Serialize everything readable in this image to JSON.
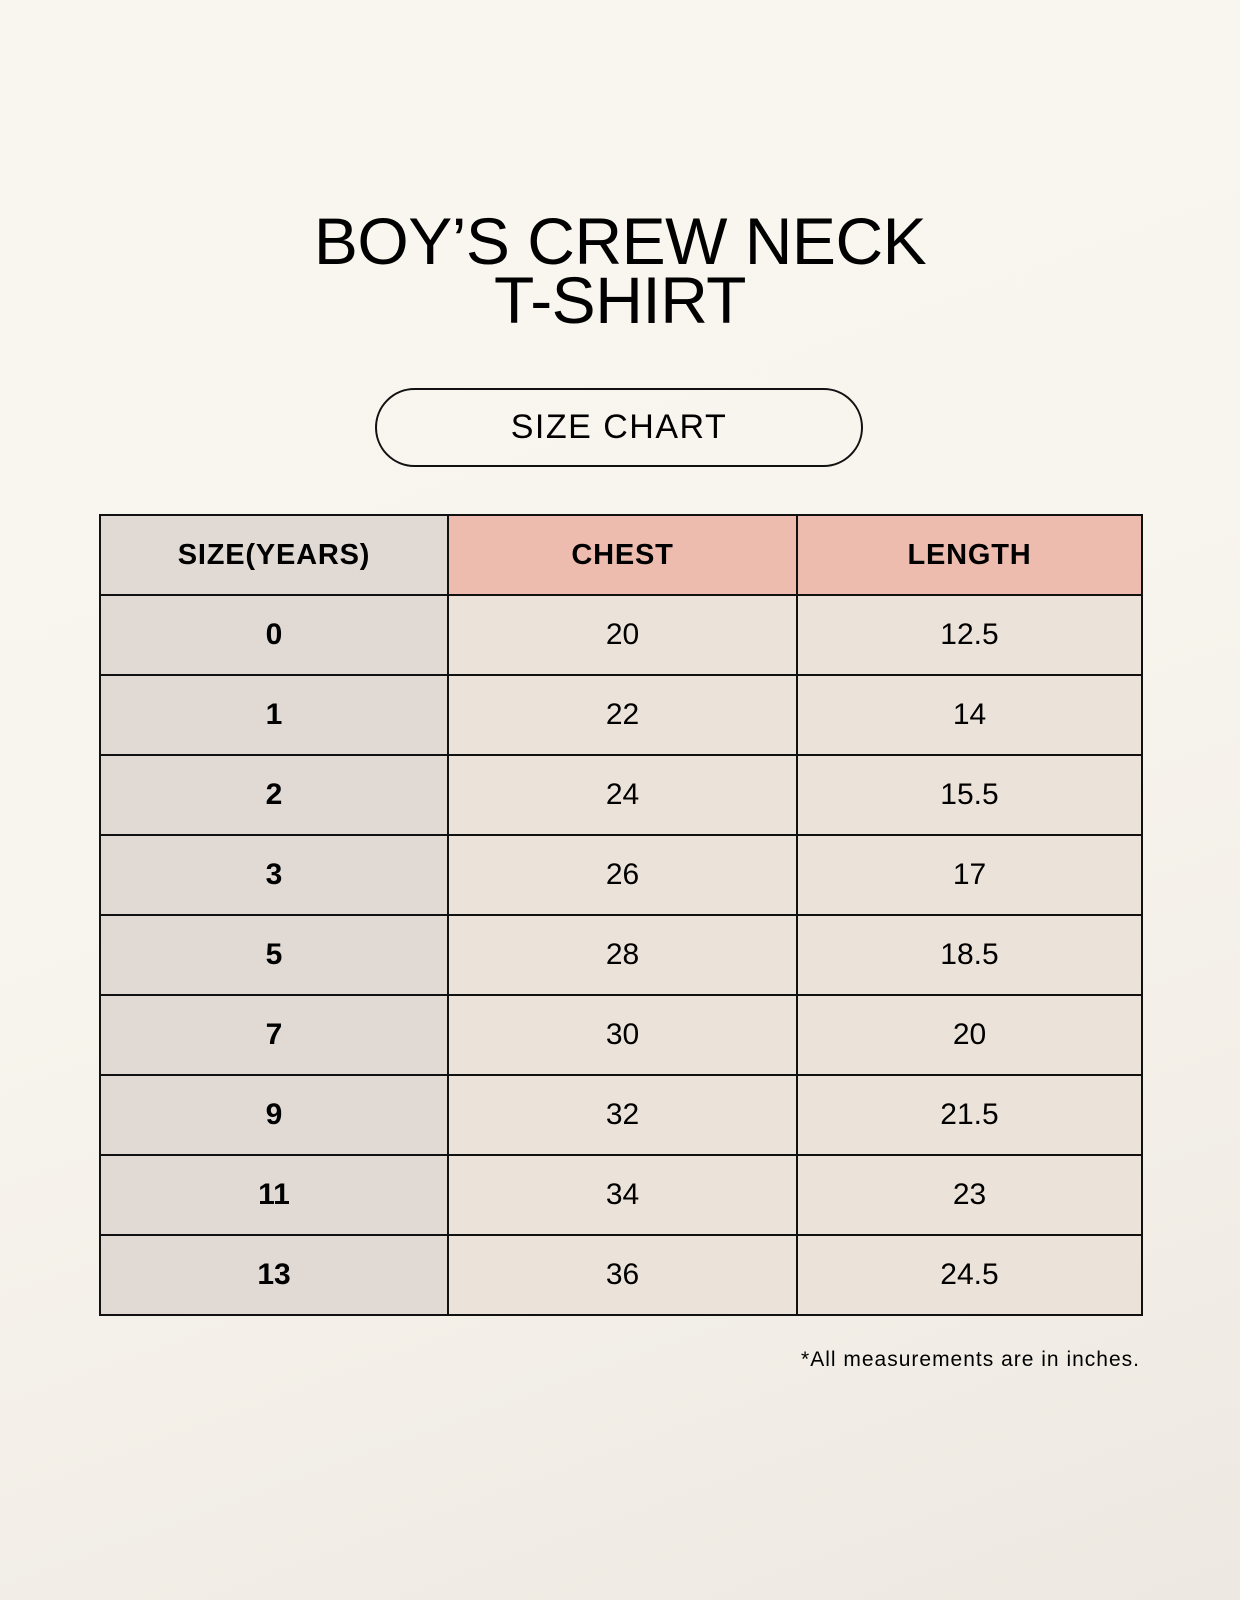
{
  "title": {
    "line1": "BOY’S CREW NECK",
    "line2": "T-SHIRT"
  },
  "badge": "SIZE CHART",
  "table": {
    "headers": [
      "SIZE(YEARS)",
      "CHEST",
      "LENGTH"
    ],
    "rows": [
      [
        "0",
        "20",
        "12.5"
      ],
      [
        "1",
        "22",
        "14"
      ],
      [
        "2",
        "24",
        "15.5"
      ],
      [
        "3",
        "26",
        "17"
      ],
      [
        "5",
        "28",
        "18.5"
      ],
      [
        "7",
        "30",
        "20"
      ],
      [
        "9",
        "32",
        "21.5"
      ],
      [
        "11",
        "34",
        "23"
      ],
      [
        "13",
        "36",
        "24.5"
      ]
    ]
  },
  "footnote": "*All measurements are in inches.",
  "colors": {
    "header_accent": "#edbcae",
    "size_column": "#e0d9d4",
    "cell": "#ebe3d9",
    "background": "#f8f5ef"
  }
}
